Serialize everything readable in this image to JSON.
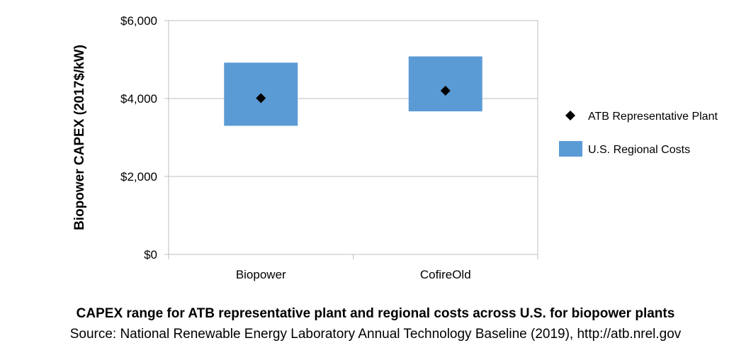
{
  "chart_data": {
    "type": "range",
    "ylabel": "Biopower CAPEX (2017$/kW)",
    "xlabel": "",
    "ylim": [
      0,
      6000
    ],
    "yticks": [
      0,
      2000,
      4000,
      6000
    ],
    "ytick_labels": [
      "$0",
      "$2,000",
      "$4,000",
      "$6,000"
    ],
    "categories": [
      "Biopower",
      "CofireOld"
    ],
    "series": [
      {
        "name": "U.S. Regional Costs",
        "kind": "range-bar",
        "color": "#5b9bd5",
        "ranges": [
          [
            3300,
            4920
          ],
          [
            3670,
            5080
          ]
        ]
      },
      {
        "name": "ATB Representative Plant",
        "kind": "marker",
        "marker": "diamond",
        "color": "#000000",
        "values": [
          4010,
          4200
        ]
      }
    ],
    "grid": true,
    "legend_position": "right"
  },
  "caption": {
    "title": "CAPEX range for ATB representative plant and regional costs across U.S. for biopower plants",
    "source": "Source: National Renewable Energy Laboratory Annual Technology Baseline (2019), http://atb.nrel.gov"
  }
}
